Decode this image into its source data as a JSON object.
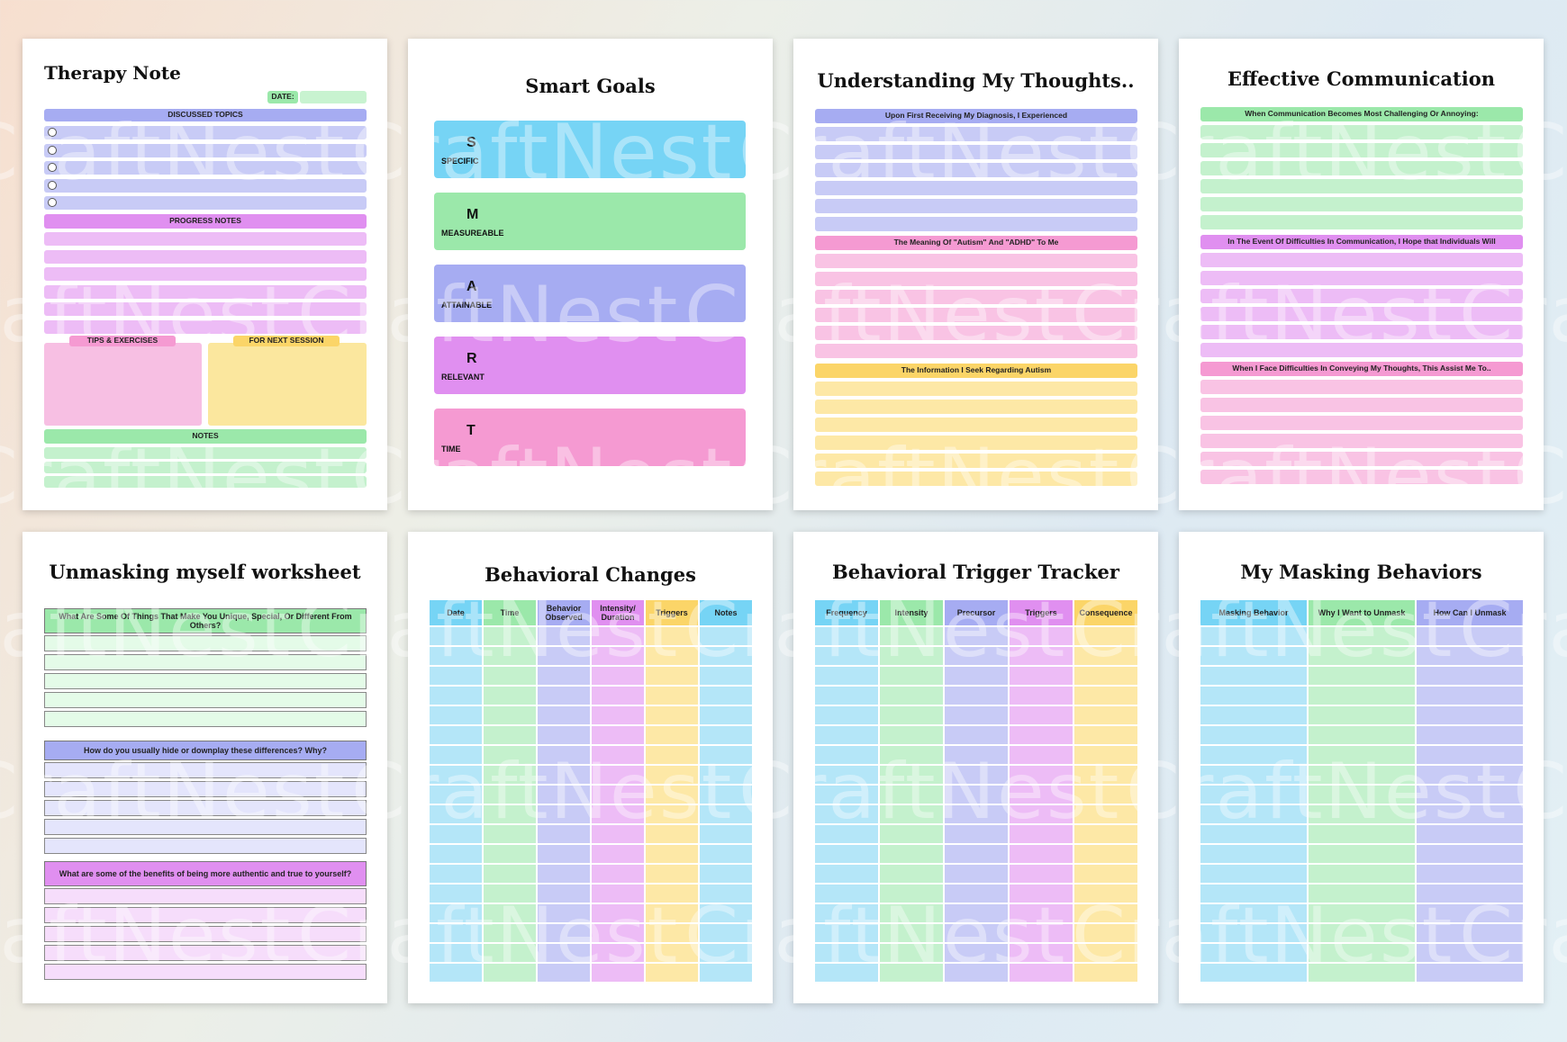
{
  "watermark": "CraftNest",
  "therapy_note": {
    "title": "Therapy Note",
    "date_label": "DATE:",
    "discussed_topics": "DISCUSSED TOPICS",
    "progress_notes": "PROGRESS NOTES",
    "tips_exercises": "TIPS & EXERCISES",
    "for_next_session": "FOR NEXT SESSION",
    "notes": "NOTES"
  },
  "smart_goals": {
    "title": "Smart Goals",
    "items": [
      {
        "letter": "S",
        "word": "SPECIFIC"
      },
      {
        "letter": "M",
        "word": "MEASUREABLE"
      },
      {
        "letter": "A",
        "word": "ATTAINABLE"
      },
      {
        "letter": "R",
        "word": "RELEVANT"
      },
      {
        "letter": "T",
        "word": "TIME"
      }
    ]
  },
  "thoughts": {
    "title": "Understanding My Thoughts..",
    "section1": "Upon First Receiving My Diagnosis, I Experienced",
    "section2": "The Meaning Of \"Autism\" And \"ADHD\" To Me",
    "section3": "The Information I Seek Regarding Autism"
  },
  "communication": {
    "title": "Effective Communication",
    "section1": "When Communication Becomes Most Challenging Or Annoying:",
    "section2": "In The Event Of Difficulties In Communication, I Hope that Individuals Will",
    "section3": "When I Face Difficulties In Conveying My Thoughts, This Assist Me To.."
  },
  "unmasking": {
    "title": "Unmasking myself worksheet",
    "q1": "What Are Some Of Things That Make You Unique, Special, Or Different From Others?",
    "q2": "How do you usually hide or downplay these differences? Why?",
    "q3": "What are some of the benefits of being more authentic and true to yourself?"
  },
  "behavioral_changes": {
    "title": "Behavioral Changes",
    "columns": [
      "Date",
      "Time",
      "Behavior Observed",
      "Intensity/ Duration",
      "Triggers",
      "Notes"
    ]
  },
  "trigger_tracker": {
    "title": "Behavioral Trigger Tracker",
    "columns": [
      "Frequency",
      "Intensity",
      "Precursor",
      "Triggers",
      "Consequence"
    ]
  },
  "masking": {
    "title": "My Masking Behaviors",
    "columns": [
      "Masking Behavior",
      "Why I Want to Unmask",
      "How Can I Unmask"
    ]
  },
  "colors": {
    "blue": "#76d4f5",
    "green": "#9be8aa",
    "purple": "#a6acf2",
    "violet": "#e08ff0",
    "pink": "#f59ad2",
    "yellow": "#fbd568"
  }
}
